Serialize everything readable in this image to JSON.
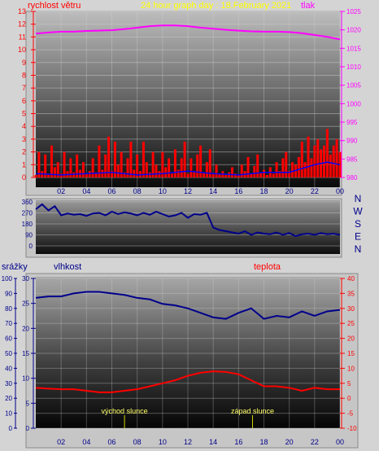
{
  "header": {
    "wind_speed_label": "rychlost větru",
    "graph_title": "24 hour graph day : 18.February 2021",
    "pressure_label": "tlak"
  },
  "bottom_labels": {
    "rain_label": "srážky",
    "humidity_label": "vlhkost",
    "temperature_label": "teplota",
    "sunrise_label": "východ slunce",
    "sunset_label": "západ slunce"
  },
  "colors": {
    "wind": "#ff0000",
    "gust": "#0000ff",
    "pressure": "#ff00ff",
    "direction": "#00008b",
    "humidity": "#00008b",
    "temperature": "#ff0000",
    "sun_marker": "#d4d400"
  },
  "chart_data": [
    {
      "id": "wind_pressure",
      "type": "line",
      "x_ticks": [
        "02",
        "04",
        "06",
        "08",
        "10",
        "12",
        "14",
        "16",
        "18",
        "20",
        "22",
        "00"
      ],
      "y_left": {
        "label": "rychlost větru",
        "range": [
          0,
          13
        ],
        "ticks": [
          0,
          1,
          2,
          3,
          4,
          5,
          6,
          7,
          8,
          9,
          10,
          11,
          12,
          13
        ]
      },
      "y_right": {
        "label": "tlak",
        "range": [
          980,
          1025
        ],
        "ticks": [
          980,
          985,
          990,
          995,
          1000,
          1005,
          1010,
          1015,
          1020,
          1025
        ]
      },
      "series": [
        {
          "name": "tlak",
          "axis": "right",
          "x": [
            0,
            1,
            2,
            3,
            4,
            5,
            6,
            7,
            8,
            9,
            10,
            11,
            12,
            13,
            14,
            15,
            16,
            17,
            18,
            19,
            20,
            21,
            22,
            23,
            24
          ],
          "values": [
            1019,
            1019.3,
            1019.5,
            1019.5,
            1019.7,
            1019.8,
            1019.9,
            1020.2,
            1020.6,
            1021,
            1021.2,
            1021.2,
            1021,
            1020.6,
            1020.3,
            1020,
            1019.8,
            1019.6,
            1019.5,
            1019.5,
            1019.4,
            1019.1,
            1018.6,
            1018.1,
            1017.4
          ]
        },
        {
          "name": "rychlost",
          "axis": "left",
          "x": [
            0,
            0.25,
            0.5,
            0.75,
            1,
            1.25,
            1.5,
            1.75,
            2,
            2.25,
            2.5,
            2.75,
            3,
            3.25,
            3.5,
            3.75,
            4,
            4.25,
            4.5,
            4.75,
            5,
            5.25,
            5.5,
            5.75,
            6,
            6.25,
            6.5,
            6.75,
            7,
            7.25,
            7.5,
            7.75,
            8,
            8.25,
            8.5,
            8.75,
            9,
            9.25,
            9.5,
            9.75,
            10,
            10.25,
            10.5,
            10.75,
            11,
            11.25,
            11.5,
            11.75,
            12,
            12.25,
            12.5,
            12.75,
            13,
            13.25,
            13.5,
            13.75,
            14,
            14.25,
            14.5,
            14.75,
            15,
            15.25,
            15.5,
            15.75,
            16,
            16.25,
            16.5,
            16.75,
            17,
            17.25,
            17.5,
            17.75,
            18,
            18.25,
            18.5,
            18.75,
            19,
            19.25,
            19.5,
            19.75,
            20,
            20.25,
            20.5,
            20.75,
            21,
            21.25,
            21.5,
            21.75,
            22,
            22.25,
            22.5,
            22.75,
            23,
            23.25,
            23.5,
            23.75,
            24
          ],
          "values": [
            0.2,
            2,
            0.5,
            1.8,
            0.3,
            2.5,
            0.8,
            1.2,
            0.3,
            2,
            0.5,
            1.5,
            0.4,
            1.8,
            0.6,
            1.2,
            0.3,
            0.5,
            1.5,
            0.4,
            2.5,
            0.6,
            1.8,
            3.2,
            0.5,
            2.8,
            1,
            2,
            0.4,
            1.5,
            2.8,
            0.6,
            1.8,
            0.5,
            2.8,
            1.2,
            0.4,
            2,
            1,
            0.5,
            2,
            0.8,
            1.5,
            0.3,
            2.2,
            0.6,
            1.5,
            2.8,
            0.3,
            1.5,
            0.5,
            1.8,
            2.5,
            0.4,
            1.2,
            2.2,
            0.3,
            1,
            0.3,
            0.5,
            0.2,
            0.4,
            0.8,
            0.3,
            0.2,
            1,
            0.5,
            1.6,
            0.3,
            0.9,
            1.8,
            0.4,
            0.6,
            0.2,
            0.8,
            0.3,
            1.2,
            0.5,
            1.5,
            2,
            0.5,
            1.2,
            1,
            1.6,
            2.8,
            1.2,
            3.2,
            1.5,
            2.5,
            3,
            2.2,
            2.5,
            3.8,
            1.8,
            2.5,
            3,
            2
          ]
        },
        {
          "name": "nárazy",
          "axis": "left",
          "x": [
            0,
            2,
            4,
            6,
            8,
            10,
            12,
            14,
            16,
            18,
            20,
            22,
            23,
            24
          ],
          "values": [
            0.3,
            0.2,
            0.3,
            0.4,
            0.2,
            0.3,
            0.5,
            0.3,
            0.2,
            0.4,
            0.4,
            1,
            1.2,
            1
          ]
        }
      ]
    },
    {
      "id": "wind_direction",
      "type": "line",
      "y_ticks": [
        0,
        90,
        180,
        270,
        360
      ],
      "y_range": [
        0,
        360
      ],
      "direction_labels": [
        "N",
        "W",
        "S",
        "E",
        "N"
      ],
      "series": [
        {
          "name": "směr",
          "x": [
            0,
            0.5,
            1,
            1.5,
            2,
            2.5,
            3,
            3.5,
            4,
            4.5,
            5,
            5.5,
            6,
            6.5,
            7,
            7.5,
            8,
            8.5,
            9,
            9.5,
            10,
            10.5,
            11,
            11.5,
            12,
            12.5,
            13,
            13.5,
            14,
            14.5,
            15,
            15.5,
            16,
            16.5,
            17,
            17.5,
            18,
            18.5,
            19,
            19.5,
            20,
            20.5,
            21,
            21.5,
            22,
            22.5,
            23,
            23.5,
            24
          ],
          "values": [
            300,
            340,
            290,
            325,
            250,
            265,
            255,
            260,
            245,
            265,
            270,
            250,
            280,
            260,
            275,
            265,
            250,
            270,
            255,
            280,
            260,
            240,
            250,
            270,
            230,
            260,
            255,
            270,
            150,
            130,
            120,
            110,
            100,
            120,
            90,
            110,
            100,
            95,
            110,
            90,
            105,
            80,
            95,
            100,
            90,
            105,
            95,
            100,
            90
          ]
        }
      ]
    },
    {
      "id": "humidity_temperature",
      "type": "line",
      "x_ticks": [
        "02",
        "04",
        "06",
        "08",
        "10",
        "12",
        "14",
        "16",
        "18",
        "20",
        "22",
        "00"
      ],
      "y_left_outer": {
        "label": "srážky",
        "range": [
          0,
          100
        ],
        "ticks": [
          0,
          10,
          20,
          30,
          40,
          50,
          60,
          70,
          80,
          90,
          100
        ]
      },
      "y_left_inner": {
        "label": "vlhkost",
        "range": [
          0,
          30
        ],
        "ticks": [
          0,
          5,
          10,
          15,
          20,
          25,
          30
        ]
      },
      "y_right": {
        "label": "teplota",
        "range": [
          -10,
          40
        ],
        "ticks": [
          -10,
          -5,
          0,
          5,
          10,
          15,
          20,
          25,
          30,
          35,
          40
        ]
      },
      "sunrise_hour": 7,
      "sunset_hour": 17.1,
      "series": [
        {
          "name": "vlhkost",
          "axis": "left_outer",
          "x": [
            0,
            1,
            2,
            3,
            4,
            5,
            6,
            7,
            8,
            9,
            10,
            11,
            12,
            13,
            14,
            15,
            16,
            17,
            18,
            19,
            20,
            21,
            22,
            23,
            24
          ],
          "values": [
            87,
            88,
            88,
            90,
            91,
            91,
            90,
            89,
            87,
            86,
            83,
            82,
            80,
            77,
            74,
            73,
            77,
            80,
            73,
            75,
            74,
            78,
            75,
            78,
            79
          ]
        },
        {
          "name": "teplota",
          "axis": "right",
          "x": [
            0,
            1,
            2,
            3,
            4,
            5,
            6,
            7,
            8,
            9,
            10,
            11,
            12,
            13,
            14,
            15,
            16,
            17,
            18,
            19,
            20,
            21,
            22,
            23,
            24
          ],
          "values": [
            3.5,
            3.2,
            3,
            3,
            2.5,
            2,
            2,
            2.5,
            3,
            4,
            5,
            6,
            7.5,
            8.5,
            9,
            8.8,
            8,
            6,
            4,
            4,
            3.5,
            2.5,
            3.5,
            3,
            3
          ]
        }
      ]
    }
  ]
}
